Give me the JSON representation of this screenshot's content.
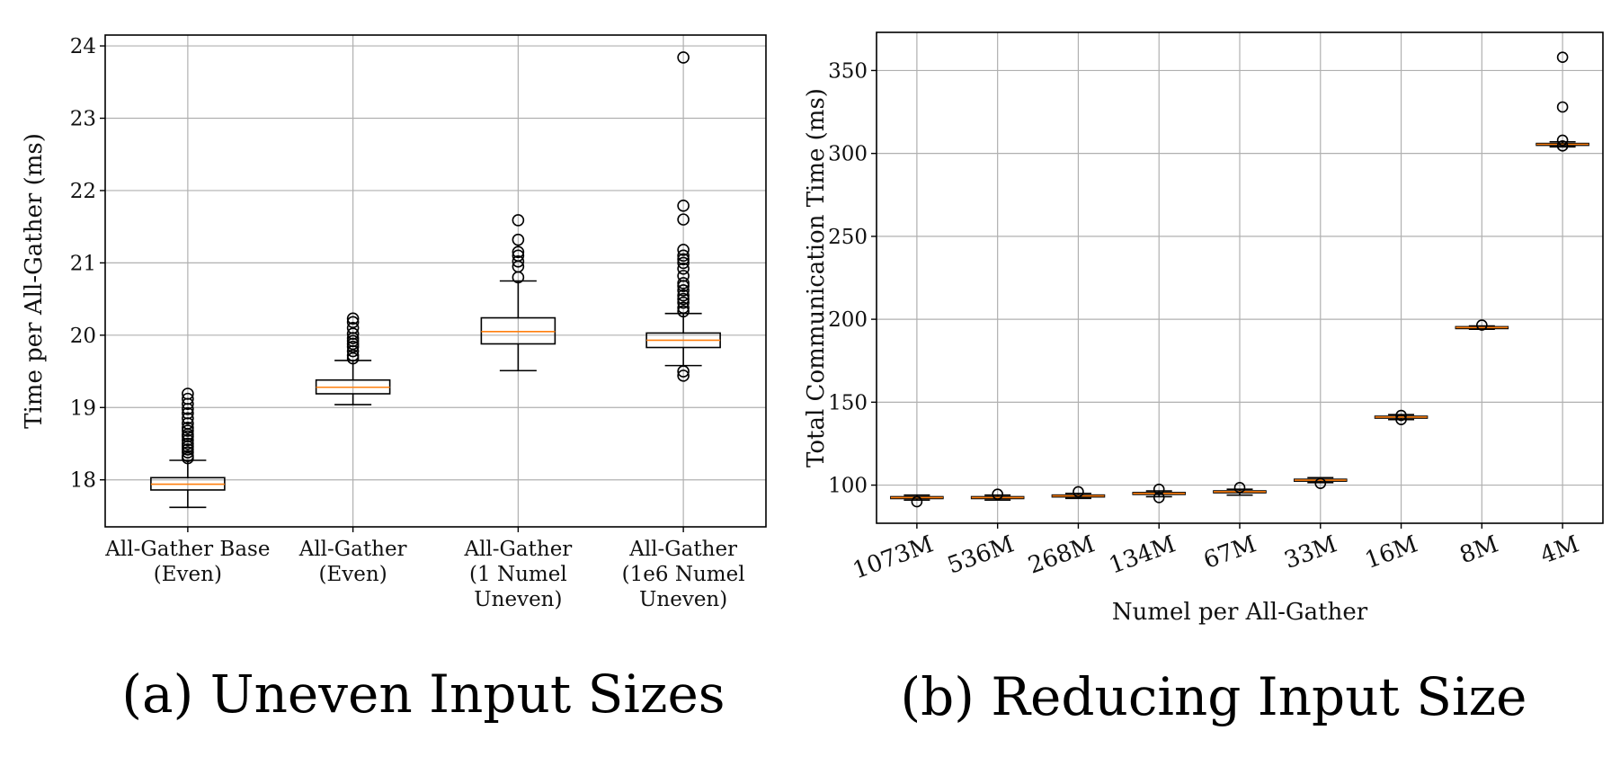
{
  "captions": {
    "a": "(a) Uneven Input Sizes",
    "b": "(b) Reducing Input Size"
  },
  "colors": {
    "median": "#ff7f0e",
    "box": "#000000",
    "grid": "#b0b0b0"
  },
  "chart_data": [
    {
      "type": "boxplot",
      "ylabel": "Time per All-Gather (ms)",
      "xlabel": "",
      "ylim": [
        17.35,
        24.15
      ],
      "yticks": [
        18,
        19,
        20,
        21,
        22,
        23,
        24
      ],
      "grid": true,
      "categories": [
        [
          "All-Gather Base",
          "(Even)"
        ],
        [
          "All-Gather",
          "(Even)"
        ],
        [
          "All-Gather",
          "(1 Numel",
          "Uneven)"
        ],
        [
          "All-Gather",
          "(1e6 Numel",
          "Uneven)"
        ]
      ],
      "boxes": [
        {
          "whislo": 17.62,
          "q1": 17.86,
          "med": 17.94,
          "q3": 18.03,
          "whishi": 18.27,
          "fliers": [
            18.3,
            18.33,
            18.38,
            18.42,
            18.46,
            18.5,
            18.55,
            18.6,
            18.63,
            18.68,
            18.72,
            18.78,
            18.85,
            18.92,
            18.98,
            19.05,
            19.12,
            19.19
          ]
        },
        {
          "whislo": 19.04,
          "q1": 19.19,
          "med": 19.28,
          "q3": 19.38,
          "whishi": 19.65,
          "fliers": [
            19.68,
            19.72,
            19.78,
            19.84,
            19.88,
            19.92,
            19.96,
            20.02,
            20.1,
            20.18,
            20.23
          ]
        },
        {
          "whislo": 19.51,
          "q1": 19.88,
          "med": 20.05,
          "q3": 20.24,
          "whishi": 20.75,
          "fliers": [
            20.8,
            20.95,
            21.02,
            21.1,
            21.15,
            21.32,
            21.59
          ]
        },
        {
          "whislo": 19.58,
          "q1": 19.83,
          "med": 19.93,
          "q3": 20.03,
          "whishi": 20.3,
          "fliers": [
            19.44,
            19.5,
            20.33,
            20.38,
            20.45,
            20.5,
            20.55,
            20.62,
            20.68,
            20.72,
            20.82,
            20.92,
            21.0,
            21.05,
            21.1,
            21.18,
            21.6,
            21.79,
            23.84
          ]
        }
      ]
    },
    {
      "type": "boxplot",
      "ylabel": "Total Communication Time (ms)",
      "xlabel": "Numel per All-Gather",
      "ylim": [
        77,
        373
      ],
      "yticks": [
        100,
        150,
        200,
        250,
        300,
        350
      ],
      "grid": true,
      "categories": [
        "1073M",
        "536M",
        "268M",
        "134M",
        "67M",
        "33M",
        "16M",
        "8M",
        "4M"
      ],
      "boxes": [
        {
          "whislo": 91,
          "q1": 92,
          "med": 92.5,
          "q3": 93,
          "whishi": 94,
          "fliers": [
            90
          ]
        },
        {
          "whislo": 91,
          "q1": 92,
          "med": 92.5,
          "q3": 93,
          "whishi": 94,
          "fliers": [
            94.5
          ]
        },
        {
          "whislo": 92,
          "q1": 93,
          "med": 93.5,
          "q3": 94,
          "whishi": 95,
          "fliers": [
            96
          ]
        },
        {
          "whislo": 93,
          "q1": 94.5,
          "med": 95,
          "q3": 95.5,
          "whishi": 96.5,
          "fliers": [
            92.5,
            97.5
          ]
        },
        {
          "whislo": 94,
          "q1": 95.5,
          "med": 96,
          "q3": 96.5,
          "whishi": 97.5,
          "fliers": [
            98.5
          ]
        },
        {
          "whislo": 101.5,
          "q1": 102.5,
          "med": 103,
          "q3": 103.5,
          "whishi": 104.5,
          "fliers": [
            101
          ]
        },
        {
          "whislo": 139.5,
          "q1": 140.5,
          "med": 141,
          "q3": 141.5,
          "whishi": 142.5,
          "fliers": [
            139.5,
            142
          ]
        },
        {
          "whislo": 194,
          "q1": 194.5,
          "med": 195,
          "q3": 195.5,
          "whishi": 196,
          "fliers": [
            196.5
          ]
        },
        {
          "whislo": 304,
          "q1": 305,
          "med": 305.5,
          "q3": 306,
          "whishi": 307,
          "fliers": [
            304.5,
            308,
            328,
            358
          ]
        }
      ]
    }
  ]
}
